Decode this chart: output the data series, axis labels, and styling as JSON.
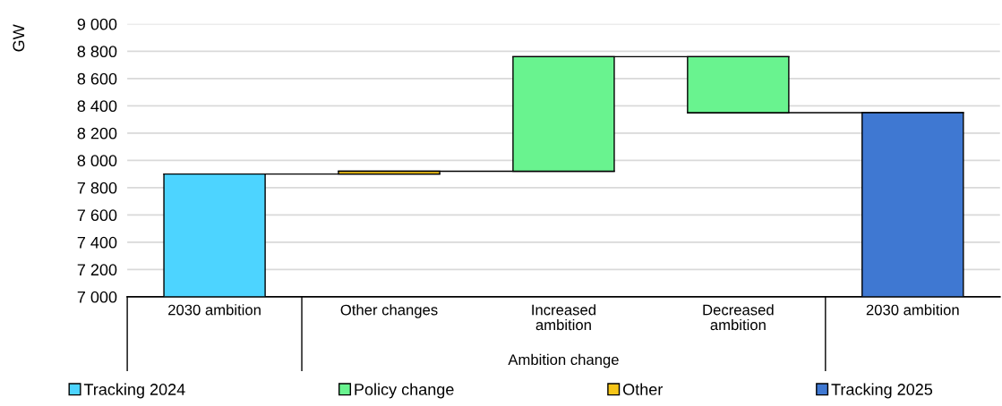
{
  "chart_data": {
    "type": "bar",
    "ylabel": "GW",
    "categories": [
      "2030 ambition",
      "Other changes",
      "Increased\nambition",
      "Decreased\nambition",
      "2030 ambition"
    ],
    "series": [
      {
        "name": "Tracking 2024",
        "color": "#4dd4ff",
        "values": [
          7900,
          null,
          null,
          null,
          null
        ]
      },
      {
        "name": "Policy change",
        "color": "#69f38f",
        "values": [
          null,
          null,
          840,
          -410,
          null
        ],
        "base": [
          null,
          null,
          7920,
          8760,
          null
        ]
      },
      {
        "name": "Other",
        "color": "#f5c518",
        "values": [
          null,
          20,
          null,
          null,
          null
        ],
        "base": [
          null,
          7900,
          null,
          null,
          null
        ]
      },
      {
        "name": "Tracking 2025",
        "color": "#3f78d2",
        "values": [
          null,
          null,
          null,
          null,
          8350
        ]
      }
    ],
    "ylim": [
      7000,
      9000
    ],
    "yticks": [
      {
        "value": 7000,
        "label": "7 000"
      },
      {
        "value": 7200,
        "label": "7 200"
      },
      {
        "value": 7400,
        "label": "7 400"
      },
      {
        "value": 7600,
        "label": "7 600"
      },
      {
        "value": 7800,
        "label": "7 800"
      },
      {
        "value": 8000,
        "label": "8 000"
      },
      {
        "value": 8200,
        "label": "8 200"
      },
      {
        "value": 8400,
        "label": "8 400"
      },
      {
        "value": 8600,
        "label": "8 600"
      },
      {
        "value": 8800,
        "label": "8 800"
      },
      {
        "value": 9000,
        "label": "9 000"
      }
    ],
    "grid": "y",
    "legend": "bottom",
    "annotations": [
      "Ambition change"
    ]
  }
}
